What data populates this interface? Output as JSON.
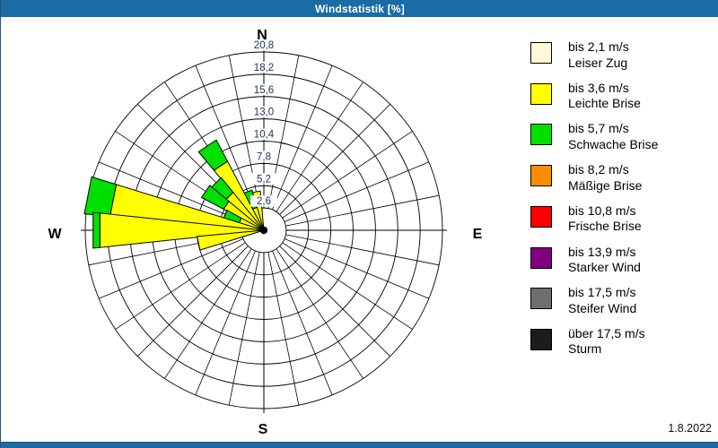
{
  "window": {
    "title": "Windstatistik [%]",
    "date_label": "1.8.2022",
    "titlebar_color": "#1b6ca4",
    "border_color": "#24547b"
  },
  "compass": {
    "north": "N",
    "east": "E",
    "south": "S",
    "west": "W"
  },
  "legend": {
    "items": [
      {
        "color": "#fff8d8",
        "dotted": false,
        "line1": "bis 2,1 m/s",
        "line2": "Leiser Zug"
      },
      {
        "color": "#ffff00",
        "dotted": false,
        "line1": "bis 3,6 m/s",
        "line2": "Leichte Brise"
      },
      {
        "color": "#00e000",
        "dotted": false,
        "line1": "bis 5,7 m/s",
        "line2": "Schwache Brise"
      },
      {
        "color": "#ff8c00",
        "dotted": false,
        "line1": "bis 8,2 m/s",
        "line2": "Mäßige Brise"
      },
      {
        "color": "#ff0000",
        "dotted": false,
        "line1": "bis 10,8 m/s",
        "line2": "Frische Brise"
      },
      {
        "color": "#800080",
        "dotted": true,
        "line1": "bis 13,9 m/s",
        "line2": "Starker Wind"
      },
      {
        "color": "#6e6e6e",
        "dotted": true,
        "line1": "bis 17,5 m/s",
        "line2": "Steifer Wind"
      },
      {
        "color": "#1c1c1c",
        "dotted": true,
        "line1": "über 17,5 m/s",
        "line2": "Sturm"
      }
    ]
  },
  "chart_data": {
    "type": "windrose_stacked_polar_bar",
    "title": "Windstatistik [%]",
    "units": "%",
    "direction_convention": "degrees clockwise from North, petals centered on direction",
    "sector_count": 32,
    "petal_angular_width_deg": 12,
    "ring_step": 2.6,
    "max_ring": 20.8,
    "ring_values": [
      2.6,
      5.2,
      7.8,
      10.4,
      13.0,
      15.6,
      18.2,
      20.8
    ],
    "ring_labels": [
      "2,6",
      "5,2",
      "7,8",
      "10,4",
      "13,0",
      "15,6",
      "18,2",
      "20,8"
    ],
    "grid": {
      "spokes_deg_step": 11.25,
      "color": "#000000"
    },
    "categories": [
      "bis 2,1 m/s Leiser Zug",
      "bis 3,6 m/s Leichte Brise",
      "bis 5,7 m/s Schwache Brise",
      "bis 8,2 m/s Mäßige Brise",
      "bis 10,8 m/s Frische Brise",
      "bis 13,9 m/s Starker Wind",
      "bis 17,5 m/s Steifer Wind",
      "über 17,5 m/s Sturm"
    ],
    "petals": [
      {
        "direction_deg": 348.75,
        "segments": [
          {
            "category_index": 1,
            "from_pct": 0,
            "to_pct": 4.6
          }
        ]
      },
      {
        "direction_deg": 337.5,
        "segments": [
          {
            "category_index": 1,
            "from_pct": 0,
            "to_pct": 2.8
          },
          {
            "category_index": 2,
            "from_pct": 2.8,
            "to_pct": 4.9
          }
        ]
      },
      {
        "direction_deg": 326.25,
        "segments": [
          {
            "category_index": 1,
            "from_pct": 0,
            "to_pct": 9.1
          },
          {
            "category_index": 2,
            "from_pct": 9.1,
            "to_pct": 11.9
          }
        ]
      },
      {
        "direction_deg": 315.0,
        "segments": [
          {
            "category_index": 1,
            "from_pct": 0,
            "to_pct": 5.7
          },
          {
            "category_index": 2,
            "from_pct": 5.7,
            "to_pct": 7.9
          }
        ]
      },
      {
        "direction_deg": 303.75,
        "segments": [
          {
            "category_index": 1,
            "from_pct": 0,
            "to_pct": 5.3
          },
          {
            "category_index": 2,
            "from_pct": 5.3,
            "to_pct": 8.2
          }
        ]
      },
      {
        "direction_deg": 292.5,
        "segments": [
          {
            "category_index": 1,
            "from_pct": 0,
            "to_pct": 3.0
          },
          {
            "category_index": 2,
            "from_pct": 3.0,
            "to_pct": 4.9
          }
        ]
      },
      {
        "direction_deg": 281.25,
        "segments": [
          {
            "category_index": 1,
            "from_pct": 0,
            "to_pct": 18.0
          },
          {
            "category_index": 2,
            "from_pct": 18.0,
            "to_pct": 21.0
          }
        ]
      },
      {
        "direction_deg": 270.0,
        "segments": [
          {
            "category_index": 1,
            "from_pct": 0,
            "to_pct": 19.2
          },
          {
            "category_index": 2,
            "from_pct": 19.2,
            "to_pct": 20.0
          }
        ]
      },
      {
        "direction_deg": 258.75,
        "segments": [
          {
            "category_index": 1,
            "from_pct": 0,
            "to_pct": 7.8
          }
        ]
      }
    ]
  }
}
